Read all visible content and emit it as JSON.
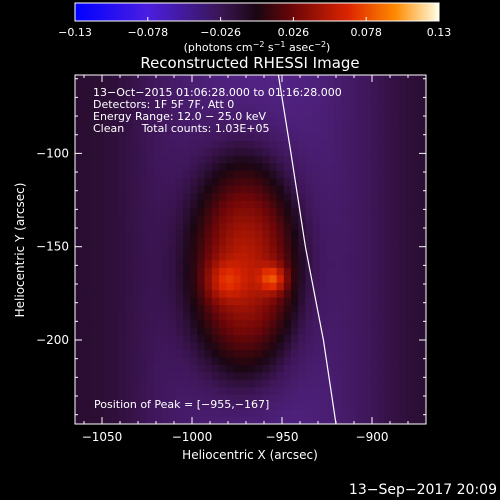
{
  "chart_data": {
    "type": "heatmap",
    "title": "Reconstructed RHESSI Image",
    "xlabel": "Heliocentric X (arcsec)",
    "ylabel": "Heliocentric Y (arcsec)",
    "xlim": [
      -1065,
      -870
    ],
    "ylim": [
      -245,
      -58
    ],
    "x_ticks": [
      -1050,
      -1000,
      -950,
      -900
    ],
    "x_tick_labels": [
      "−1050",
      "−1000",
      "−950",
      "−900"
    ],
    "y_ticks": [
      -100,
      -150,
      -200
    ],
    "y_tick_labels": [
      "−100",
      "−150",
      "−200"
    ],
    "colorbar": {
      "min": -0.13,
      "max": 0.13,
      "ticks": [
        -0.13,
        -0.078,
        -0.026,
        0.026,
        0.078,
        0.13
      ],
      "tick_labels": [
        "−0.13",
        "−0.078",
        "−0.026",
        "0.026",
        "0.078",
        "0.13"
      ],
      "units_main": "(photons cm",
      "units_exp1": "−2",
      "units_mid": " s",
      "units_exp2": "−1",
      "units_end": " asec",
      "units_exp3": "−2",
      "units_close": ")"
    },
    "info_lines": [
      "13−Oct−2015 01:06:28.000 to 01:16:28.000",
      "Detectors: 1F 5F 7F, Att 0",
      "Energy Range: 12.0 − 25.0 keV",
      "Clean     Total counts: 1.03E+05"
    ],
    "peak_label": "Position of Peak = [−955,−167]",
    "peak": {
      "x": -955,
      "y": -167,
      "value": 0.13
    },
    "sources": [
      {
        "x": -970,
        "y": -160,
        "sx": 20,
        "sy": 40,
        "amp": 0.075
      },
      {
        "x": -982,
        "y": -168,
        "sx": 7,
        "sy": 7,
        "amp": 0.03
      },
      {
        "x": -955,
        "y": -167,
        "sx": 5,
        "sy": 5,
        "amp": 0.05
      }
    ],
    "background": -0.018,
    "limb": [
      {
        "x": -952,
        "y": -58
      },
      {
        "x": -945,
        "y": -100
      },
      {
        "x": -937,
        "y": -150
      },
      {
        "x": -927,
        "y": -200
      },
      {
        "x": -920,
        "y": -245
      }
    ]
  },
  "footer": {
    "date": "13−Sep−2017 20:09"
  }
}
